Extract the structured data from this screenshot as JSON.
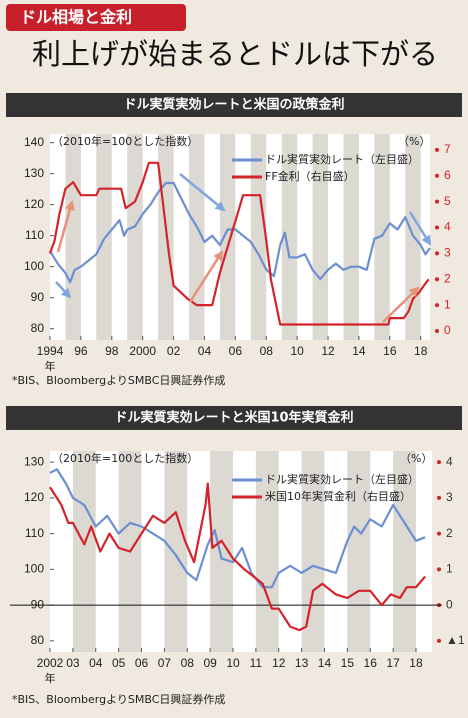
{
  "header": {
    "tab": "ドル相場と金利",
    "title": "利上げが始まるとドルは下がる"
  },
  "chart_data": [
    {
      "type": "line",
      "title": "ドル実質実効レートと米国の政策金利",
      "note_left": "（2010年=100とした指数）",
      "note_right": "（%）",
      "x_unit": "年",
      "source": "*BIS、BloombergよりSMBC日興証券作成",
      "xlim": [
        1994,
        2018.6
      ],
      "xticks": [
        1994,
        {
          "value": 1996,
          "label": "96"
        },
        {
          "value": 1998,
          "label": "98"
        },
        2000,
        {
          "value": 2002,
          "label": "02"
        },
        {
          "value": 2004,
          "label": "04"
        },
        {
          "value": 2006,
          "label": "06"
        },
        {
          "value": 2008,
          "label": "08"
        },
        {
          "value": 2010,
          "label": "10"
        },
        {
          "value": 2012,
          "label": "12"
        },
        {
          "value": 2014,
          "label": "14"
        },
        {
          "value": 2016,
          "label": "16"
        },
        {
          "value": 2018,
          "label": "18"
        }
      ],
      "ylim": [
        77,
        141.5
      ],
      "yticks": [
        80,
        90,
        100,
        110,
        120,
        130,
        140
      ],
      "y2lim": [
        -0.27,
        7.46
      ],
      "y2ticks": [
        0,
        1,
        2,
        3,
        4,
        5,
        6,
        7
      ],
      "y2tick_color": "#d4232a",
      "series": [
        {
          "name": "ドル実質実効レート（左目盛）",
          "color": "#6b8fd1",
          "x": [
            1994.0,
            1994.5,
            1995.0,
            1995.3,
            1995.6,
            1996.0,
            1996.5,
            1997.0,
            1997.5,
            1998.0,
            1998.5,
            1998.8,
            1999.0,
            1999.5,
            2000.0,
            2000.5,
            2001.0,
            2001.5,
            2002.0,
            2002.5,
            2003.0,
            2003.5,
            2004.0,
            2004.5,
            2005.0,
            2005.5,
            2006.0,
            2006.5,
            2007.0,
            2007.5,
            2008.0,
            2008.5,
            2008.9,
            2009.2,
            2009.5,
            2010.0,
            2010.5,
            2011.0,
            2011.5,
            2012.0,
            2012.5,
            2013.0,
            2013.5,
            2014.0,
            2014.5,
            2015.0,
            2015.5,
            2016.0,
            2016.5,
            2017.0,
            2017.5,
            2018.0,
            2018.3,
            2018.6
          ],
          "values": [
            105,
            101,
            98,
            95,
            99,
            100,
            102,
            104,
            109,
            112,
            115,
            110,
            112,
            113,
            117,
            120,
            124,
            127,
            127,
            122,
            117,
            113,
            108,
            110,
            107,
            112,
            112,
            110,
            108,
            104,
            99,
            97,
            107,
            111,
            103,
            103,
            104,
            99,
            96,
            99,
            101,
            99,
            100,
            100,
            99,
            109,
            110,
            114,
            112,
            116,
            110,
            107,
            104,
            106
          ]
        },
        {
          "name": "FF金利（右目盛）",
          "color": "#d4232a",
          "axis": "y2",
          "x": [
            1994.0,
            1994.3,
            1994.6,
            1995.0,
            1995.5,
            1996.0,
            1997.0,
            1997.2,
            1998.6,
            1998.9,
            1999.5,
            2000.0,
            2000.4,
            2001.0,
            2001.3,
            2001.7,
            2002.0,
            2002.9,
            2003.5,
            2004.5,
            2004.7,
            2005.0,
            2005.5,
            2006.0,
            2006.5,
            2007.6,
            2008.0,
            2008.3,
            2008.9,
            2015.9,
            2016.0,
            2016.9,
            2017.2,
            2017.5,
            2017.9,
            2018.2,
            2018.5
          ],
          "values": [
            3.0,
            3.5,
            4.5,
            5.5,
            5.75,
            5.25,
            5.25,
            5.5,
            5.5,
            4.75,
            5.0,
            5.75,
            6.5,
            6.5,
            5.0,
            3.0,
            1.75,
            1.25,
            1.0,
            1.0,
            1.5,
            2.25,
            3.25,
            4.25,
            5.25,
            5.25,
            3.5,
            2.0,
            0.25,
            0.25,
            0.5,
            0.5,
            0.75,
            1.25,
            1.5,
            1.75,
            2.0
          ]
        }
      ]
    },
    {
      "type": "line",
      "title": "ドル実質実効レートと米国10年実質金利",
      "note_left": "（2010年=100とした指数）",
      "note_right": "（%）",
      "x_unit": "年",
      "source": "*BIS、BloombergよりSMBC日興証券作成",
      "xlim": [
        2002,
        2018.7
      ],
      "xticks": [
        2002,
        {
          "value": 2003,
          "label": "03"
        },
        {
          "value": 2004,
          "label": "04"
        },
        {
          "value": 2005,
          "label": "05"
        },
        {
          "value": 2006,
          "label": "06"
        },
        {
          "value": 2007,
          "label": "07"
        },
        {
          "value": 2008,
          "label": "08"
        },
        {
          "value": 2009,
          "label": "09"
        },
        {
          "value": 2010,
          "label": "10"
        },
        {
          "value": 2011,
          "label": "11"
        },
        {
          "value": 2012,
          "label": "12"
        },
        {
          "value": 2013,
          "label": "13"
        },
        {
          "value": 2014,
          "label": "14"
        },
        {
          "value": 2015,
          "label": "15"
        },
        {
          "value": 2016,
          "label": "16"
        },
        {
          "value": 2017,
          "label": "17"
        },
        {
          "value": 2018,
          "label": "18"
        }
      ],
      "ylim": [
        78,
        132
      ],
      "yticks": [
        80,
        90,
        100,
        110,
        120,
        130
      ],
      "y2lim": [
        -1.2,
        4.2
      ],
      "y2ticks": [
        {
          "value": -1,
          "label": "▲1"
        },
        0,
        1,
        2,
        3,
        4
      ],
      "y2tick_color": "#333333",
      "zero_line": true,
      "series": [
        {
          "name": "ドル実質実効レート（左目盛）",
          "color": "#6b8fd1",
          "x": [
            2002.0,
            2002.3,
            2002.7,
            2003.0,
            2003.5,
            2004.0,
            2004.5,
            2005.0,
            2005.5,
            2006.0,
            2006.5,
            2007.0,
            2007.5,
            2008.0,
            2008.4,
            2008.9,
            2009.2,
            2009.5,
            2010.0,
            2010.4,
            2010.8,
            2011.3,
            2011.7,
            2012.0,
            2012.5,
            2013.0,
            2013.5,
            2014.0,
            2014.5,
            2015.0,
            2015.3,
            2015.6,
            2016.0,
            2016.5,
            2017.0,
            2017.5,
            2018.0,
            2018.4
          ],
          "values": [
            127,
            128,
            124,
            120,
            118,
            112,
            115,
            110,
            113,
            112,
            110,
            108,
            104,
            99,
            97,
            107,
            111,
            103,
            102,
            106,
            99,
            95,
            95,
            99,
            101,
            99,
            101,
            100,
            99,
            108,
            112,
            110,
            114,
            112,
            118,
            113,
            108,
            109
          ]
        },
        {
          "name": "米国10年実質金利（右目盛）",
          "color": "#d4232a",
          "axis": "y2",
          "x": [
            2002.0,
            2002.5,
            2002.8,
            2003.0,
            2003.5,
            2003.8,
            2004.2,
            2004.6,
            2005.0,
            2005.5,
            2006.0,
            2006.5,
            2007.0,
            2007.5,
            2007.9,
            2008.3,
            2008.8,
            2008.9,
            2009.1,
            2009.5,
            2010.0,
            2010.5,
            2010.9,
            2011.3,
            2011.7,
            2012.0,
            2012.5,
            2012.9,
            2013.2,
            2013.5,
            2013.9,
            2014.5,
            2015.0,
            2015.5,
            2016.0,
            2016.5,
            2016.9,
            2017.3,
            2017.6,
            2018.0,
            2018.4
          ],
          "values": [
            3.3,
            2.8,
            2.3,
            2.3,
            1.7,
            2.2,
            1.5,
            2.0,
            1.6,
            1.5,
            2.0,
            2.5,
            2.3,
            2.6,
            1.8,
            1.2,
            2.8,
            3.4,
            1.6,
            1.8,
            1.3,
            1.0,
            0.8,
            0.6,
            -0.1,
            -0.1,
            -0.6,
            -0.7,
            -0.6,
            0.4,
            0.6,
            0.3,
            0.2,
            0.4,
            0.4,
            0.0,
            0.3,
            0.2,
            0.5,
            0.5,
            0.8
          ]
        }
      ]
    }
  ]
}
